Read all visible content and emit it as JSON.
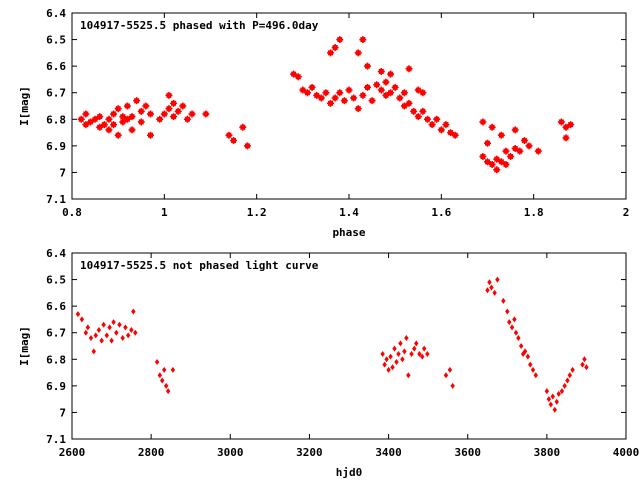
{
  "chart_data": [
    {
      "type": "scatter",
      "title": "104917-5525.5 phased with P=496.0day",
      "xlabel": "phase",
      "ylabel": "I[mag]",
      "xlim": [
        0.8,
        2.0
      ],
      "ylim": [
        7.1,
        6.4
      ],
      "xticks": [
        "0.8",
        "1",
        "1.2",
        "1.4",
        "1.6",
        "1.8",
        "2"
      ],
      "yticks": [
        "6.4",
        "6.5",
        "6.6",
        "6.7",
        "6.8",
        "6.9",
        "7",
        "7.1"
      ],
      "point_color": "#ff0000",
      "marker": "filled-star",
      "series": [
        {
          "points": [
            [
              0.82,
              6.8
            ],
            [
              0.83,
              6.82
            ],
            [
              0.83,
              6.78
            ],
            [
              0.84,
              6.81
            ],
            [
              0.85,
              6.8
            ],
            [
              0.86,
              6.83
            ],
            [
              0.86,
              6.79
            ],
            [
              0.87,
              6.82
            ],
            [
              0.88,
              6.84
            ],
            [
              0.88,
              6.8
            ],
            [
              0.89,
              6.78
            ],
            [
              0.89,
              6.82
            ],
            [
              0.9,
              6.76
            ],
            [
              0.9,
              6.86
            ],
            [
              0.91,
              6.79
            ],
            [
              0.91,
              6.81
            ],
            [
              0.92,
              6.75
            ],
            [
              0.92,
              6.8
            ],
            [
              0.93,
              6.84
            ],
            [
              0.93,
              6.79
            ],
            [
              0.94,
              6.73
            ],
            [
              0.95,
              6.77
            ],
            [
              0.95,
              6.81
            ],
            [
              0.96,
              6.75
            ],
            [
              0.97,
              6.78
            ],
            [
              0.97,
              6.86
            ],
            [
              0.99,
              6.8
            ],
            [
              1.0,
              6.78
            ],
            [
              1.01,
              6.76
            ],
            [
              1.01,
              6.71
            ],
            [
              1.02,
              6.74
            ],
            [
              1.02,
              6.79
            ],
            [
              1.03,
              6.77
            ],
            [
              1.04,
              6.75
            ],
            [
              1.05,
              6.8
            ],
            [
              1.06,
              6.78
            ],
            [
              1.09,
              6.78
            ],
            [
              1.14,
              6.86
            ],
            [
              1.15,
              6.88
            ],
            [
              1.17,
              6.83
            ],
            [
              1.18,
              6.9
            ],
            [
              1.28,
              6.63
            ],
            [
              1.29,
              6.64
            ],
            [
              1.3,
              6.69
            ],
            [
              1.31,
              6.7
            ],
            [
              1.32,
              6.68
            ],
            [
              1.33,
              6.71
            ],
            [
              1.34,
              6.72
            ],
            [
              1.35,
              6.7
            ],
            [
              1.36,
              6.55
            ],
            [
              1.36,
              6.74
            ],
            [
              1.37,
              6.53
            ],
            [
              1.37,
              6.72
            ],
            [
              1.38,
              6.5
            ],
            [
              1.38,
              6.7
            ],
            [
              1.39,
              6.73
            ],
            [
              1.4,
              6.69
            ],
            [
              1.41,
              6.72
            ],
            [
              1.42,
              6.55
            ],
            [
              1.42,
              6.76
            ],
            [
              1.43,
              6.5
            ],
            [
              1.43,
              6.71
            ],
            [
              1.44,
              6.68
            ],
            [
              1.45,
              6.73
            ],
            [
              1.46,
              6.67
            ],
            [
              1.47,
              6.69
            ],
            [
              1.48,
              6.66
            ],
            [
              1.48,
              6.71
            ],
            [
              1.49,
              6.63
            ],
            [
              1.49,
              6.7
            ],
            [
              1.5,
              6.68
            ],
            [
              1.51,
              6.72
            ],
            [
              1.52,
              6.7
            ],
            [
              1.52,
              6.75
            ],
            [
              1.53,
              6.74
            ],
            [
              1.54,
              6.77
            ],
            [
              1.55,
              6.79
            ],
            [
              1.56,
              6.77
            ],
            [
              1.57,
              6.8
            ],
            [
              1.58,
              6.82
            ],
            [
              1.59,
              6.8
            ],
            [
              1.6,
              6.84
            ],
            [
              1.61,
              6.82
            ],
            [
              1.62,
              6.85
            ],
            [
              1.63,
              6.86
            ],
            [
              1.44,
              6.6
            ],
            [
              1.47,
              6.62
            ],
            [
              1.53,
              6.61
            ],
            [
              1.55,
              6.69
            ],
            [
              1.56,
              6.7
            ],
            [
              1.69,
              6.94
            ],
            [
              1.69,
              6.81
            ],
            [
              1.7,
              6.96
            ],
            [
              1.7,
              6.89
            ],
            [
              1.71,
              6.97
            ],
            [
              1.71,
              6.83
            ],
            [
              1.72,
              6.95
            ],
            [
              1.72,
              6.99
            ],
            [
              1.73,
              6.96
            ],
            [
              1.73,
              6.86
            ],
            [
              1.74,
              6.92
            ],
            [
              1.74,
              6.97
            ],
            [
              1.75,
              6.94
            ],
            [
              1.76,
              6.91
            ],
            [
              1.76,
              6.84
            ],
            [
              1.77,
              6.92
            ],
            [
              1.78,
              6.88
            ],
            [
              1.79,
              6.9
            ],
            [
              1.81,
              6.92
            ],
            [
              1.86,
              6.81
            ],
            [
              1.87,
              6.83
            ],
            [
              1.87,
              6.87
            ],
            [
              1.88,
              6.82
            ]
          ]
        }
      ]
    },
    {
      "type": "scatter",
      "title": "104917-5525.5 not phased light curve",
      "xlabel": "hjd0",
      "ylabel": "I[mag]",
      "xlim": [
        2600,
        4000
      ],
      "ylim": [
        7.1,
        6.4
      ],
      "xticks": [
        "2600",
        "2800",
        "3000",
        "3200",
        "3400",
        "3600",
        "3800",
        "4000"
      ],
      "yticks": [
        "6.4",
        "6.5",
        "6.6",
        "6.7",
        "6.8",
        "6.9",
        "7",
        "7.1"
      ],
      "point_color": "#ff0000",
      "marker": "diamond",
      "series": [
        {
          "points": [
            [
              2615,
              6.63
            ],
            [
              2625,
              6.65
            ],
            [
              2635,
              6.7
            ],
            [
              2640,
              6.68
            ],
            [
              2648,
              6.72
            ],
            [
              2655,
              6.77
            ],
            [
              2660,
              6.71
            ],
            [
              2668,
              6.69
            ],
            [
              2675,
              6.73
            ],
            [
              2680,
              6.67
            ],
            [
              2688,
              6.71
            ],
            [
              2695,
              6.68
            ],
            [
              2700,
              6.73
            ],
            [
              2705,
              6.66
            ],
            [
              2712,
              6.7
            ],
            [
              2720,
              6.67
            ],
            [
              2728,
              6.72
            ],
            [
              2735,
              6.68
            ],
            [
              2742,
              6.71
            ],
            [
              2750,
              6.69
            ],
            [
              2755,
              6.62
            ],
            [
              2760,
              6.7
            ],
            [
              2815,
              6.81
            ],
            [
              2822,
              6.86
            ],
            [
              2828,
              6.88
            ],
            [
              2833,
              6.84
            ],
            [
              2838,
              6.9
            ],
            [
              2843,
              6.92
            ],
            [
              2855,
              6.84
            ],
            [
              3385,
              6.78
            ],
            [
              3390,
              6.82
            ],
            [
              3395,
              6.8
            ],
            [
              3400,
              6.84
            ],
            [
              3405,
              6.79
            ],
            [
              3410,
              6.83
            ],
            [
              3415,
              6.76
            ],
            [
              3420,
              6.81
            ],
            [
              3425,
              6.78
            ],
            [
              3430,
              6.74
            ],
            [
              3435,
              6.8
            ],
            [
              3440,
              6.77
            ],
            [
              3445,
              6.72
            ],
            [
              3450,
              6.86
            ],
            [
              3458,
              6.78
            ],
            [
              3465,
              6.76
            ],
            [
              3470,
              6.74
            ],
            [
              3478,
              6.78
            ],
            [
              3485,
              6.79
            ],
            [
              3490,
              6.76
            ],
            [
              3498,
              6.78
            ],
            [
              3545,
              6.86
            ],
            [
              3555,
              6.84
            ],
            [
              3562,
              6.9
            ],
            [
              3650,
              6.54
            ],
            [
              3655,
              6.51
            ],
            [
              3660,
              6.53
            ],
            [
              3668,
              6.55
            ],
            [
              3675,
              6.5
            ],
            [
              3690,
              6.58
            ],
            [
              3700,
              6.62
            ],
            [
              3705,
              6.66
            ],
            [
              3712,
              6.68
            ],
            [
              3718,
              6.65
            ],
            [
              3722,
              6.7
            ],
            [
              3728,
              6.72
            ],
            [
              3735,
              6.75
            ],
            [
              3740,
              6.78
            ],
            [
              3745,
              6.77
            ],
            [
              3752,
              6.79
            ],
            [
              3758,
              6.82
            ],
            [
              3765,
              6.84
            ],
            [
              3772,
              6.86
            ],
            [
              3800,
              6.92
            ],
            [
              3805,
              6.95
            ],
            [
              3810,
              6.97
            ],
            [
              3815,
              6.94
            ],
            [
              3820,
              6.99
            ],
            [
              3825,
              6.96
            ],
            [
              3830,
              6.93
            ],
            [
              3838,
              6.92
            ],
            [
              3845,
              6.9
            ],
            [
              3852,
              6.88
            ],
            [
              3858,
              6.86
            ],
            [
              3865,
              6.84
            ],
            [
              3890,
              6.82
            ],
            [
              3895,
              6.8
            ],
            [
              3900,
              6.83
            ]
          ]
        }
      ]
    }
  ]
}
